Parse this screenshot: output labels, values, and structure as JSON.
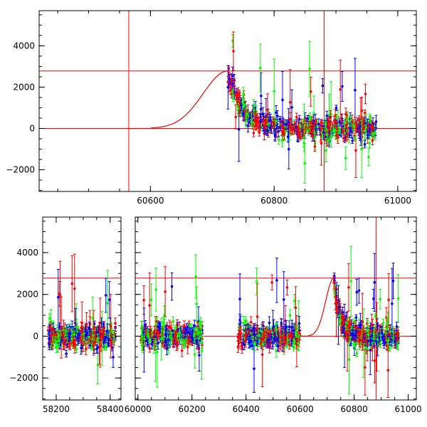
{
  "chart_data": [
    {
      "type": "scatter",
      "title": "",
      "xlabel": "",
      "ylabel": "",
      "xlim": [
        60420,
        61030
      ],
      "ylim": [
        -3050,
        5700
      ],
      "x_ticks": [
        60600,
        60800,
        61000
      ],
      "y_ticks": [
        -2000,
        0,
        2000,
        4000
      ],
      "x_tick_labels": [
        "60600",
        "60800",
        "61000"
      ],
      "y_tick_labels": [
        "−2000",
        "0",
        "2000",
        "4000"
      ],
      "reference_lines": {
        "horizontal": [
          0,
          2780
        ],
        "vertical": [
          60565,
          60881
        ]
      },
      "model_curve": {
        "baseline": 0,
        "peak_x": 60725,
        "peak_y": 2780,
        "rise_start_x": 60600
      },
      "observed_x_range": [
        60725,
        60965
      ],
      "series_colors": {
        "g": "#00ff00",
        "r": "#ff0000",
        "b": "#0000ff"
      }
    },
    {
      "type": "scatter",
      "title": "",
      "xlabel": "",
      "ylabel": "",
      "ylim": [
        -3050,
        5700
      ],
      "y_ticks": [
        -2000,
        0,
        2000,
        4000
      ],
      "y_tick_labels": [
        "−2000",
        "0",
        "2000",
        "4000"
      ],
      "reference_lines": {
        "horizontal": [
          0,
          2780
        ],
        "vertical": [
          60881
        ]
      },
      "panels": [
        {
          "xlim": [
            58150,
            58440
          ],
          "x_ticks": [
            58200,
            58400
          ],
          "x_tick_labels": [
            "58200",
            "58400"
          ],
          "observed_x_range": [
            58170,
            58420
          ]
        },
        {
          "xlim": [
            59990,
            61030
          ],
          "x_ticks": [
            60000,
            60200,
            60400,
            60600,
            60800,
            61000
          ],
          "x_tick_labels": [
            "60000",
            "60200",
            "60400",
            "60600",
            "60800",
            "61000"
          ],
          "observed_x_ranges": [
            [
              60010,
              60240
            ],
            [
              60370,
              60600
            ],
            [
              60725,
              60965
            ]
          ]
        }
      ],
      "model_curve": {
        "baseline": 0,
        "peak_x": 60725,
        "peak_y": 2780,
        "rise_start_x": 60630
      },
      "series_colors": {
        "g": "#00ff00",
        "r": "#ff0000",
        "b": "#0000ff"
      }
    }
  ]
}
